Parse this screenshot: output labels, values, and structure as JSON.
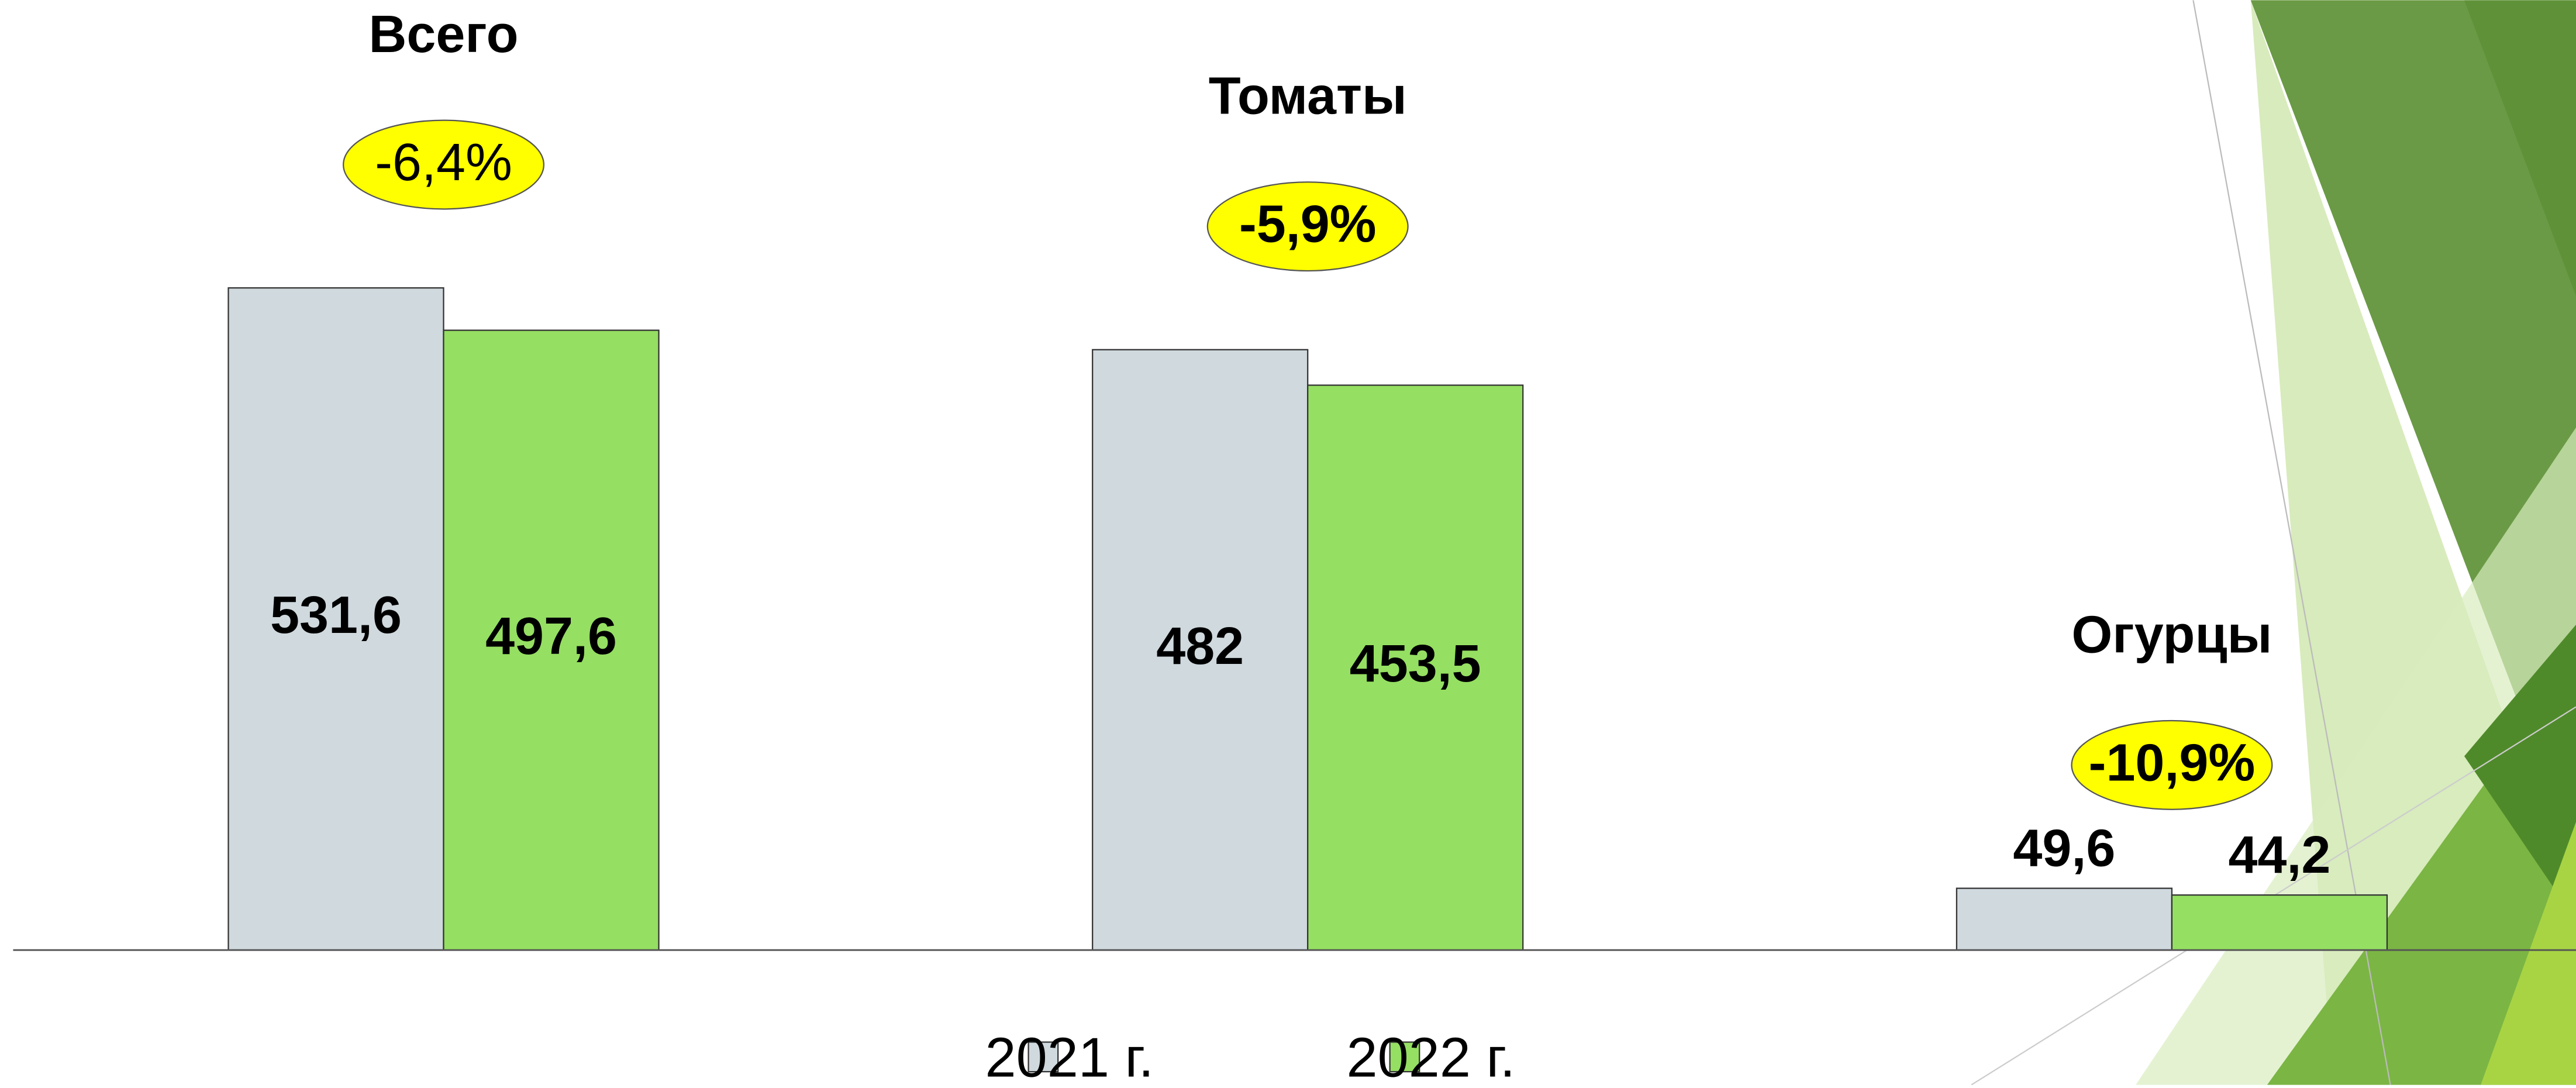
{
  "chart_data": {
    "type": "bar",
    "categories": [
      "Всего",
      "Томаты",
      "Огурцы"
    ],
    "annotations": [
      "-6,4%",
      "-5,9%",
      "-10,9%"
    ],
    "series": [
      {
        "name": "2021 г.",
        "color": "#cfd9de",
        "values": [
          531.6,
          482,
          49.6
        ],
        "value_labels": [
          "531,6",
          "482",
          "49,6"
        ]
      },
      {
        "name": "2022 г.",
        "color": "#95df62",
        "values": [
          497.6,
          453.5,
          44.2
        ],
        "value_labels": [
          "497,6",
          "453,5",
          "44,2"
        ]
      }
    ],
    "grid": false,
    "legend": "bottom"
  }
}
